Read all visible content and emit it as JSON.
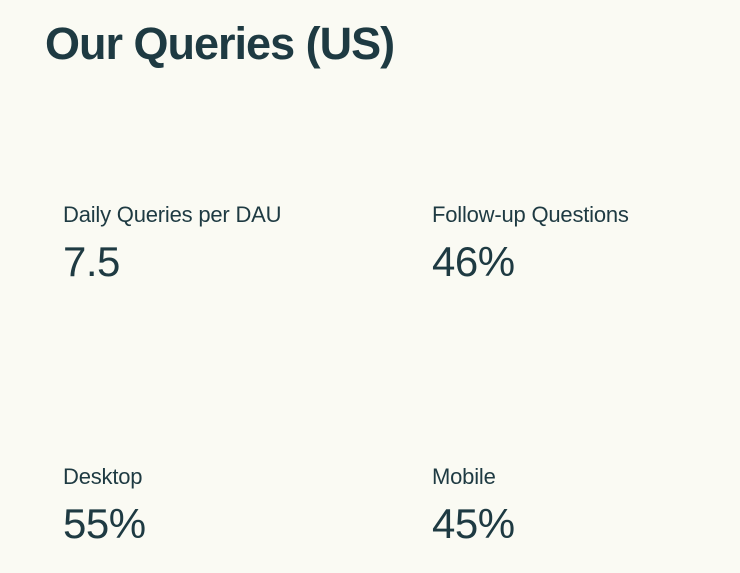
{
  "title": "Our Queries (US)",
  "colors": {
    "background": "#FAFAF3",
    "text": "#1E3A42"
  },
  "stats": [
    {
      "label": "Daily Queries per DAU",
      "value": "7.5"
    },
    {
      "label": "Follow-up Questions",
      "value": "46%"
    },
    {
      "label": "Desktop",
      "value": "55%"
    },
    {
      "label": "Mobile",
      "value": "45%"
    }
  ]
}
